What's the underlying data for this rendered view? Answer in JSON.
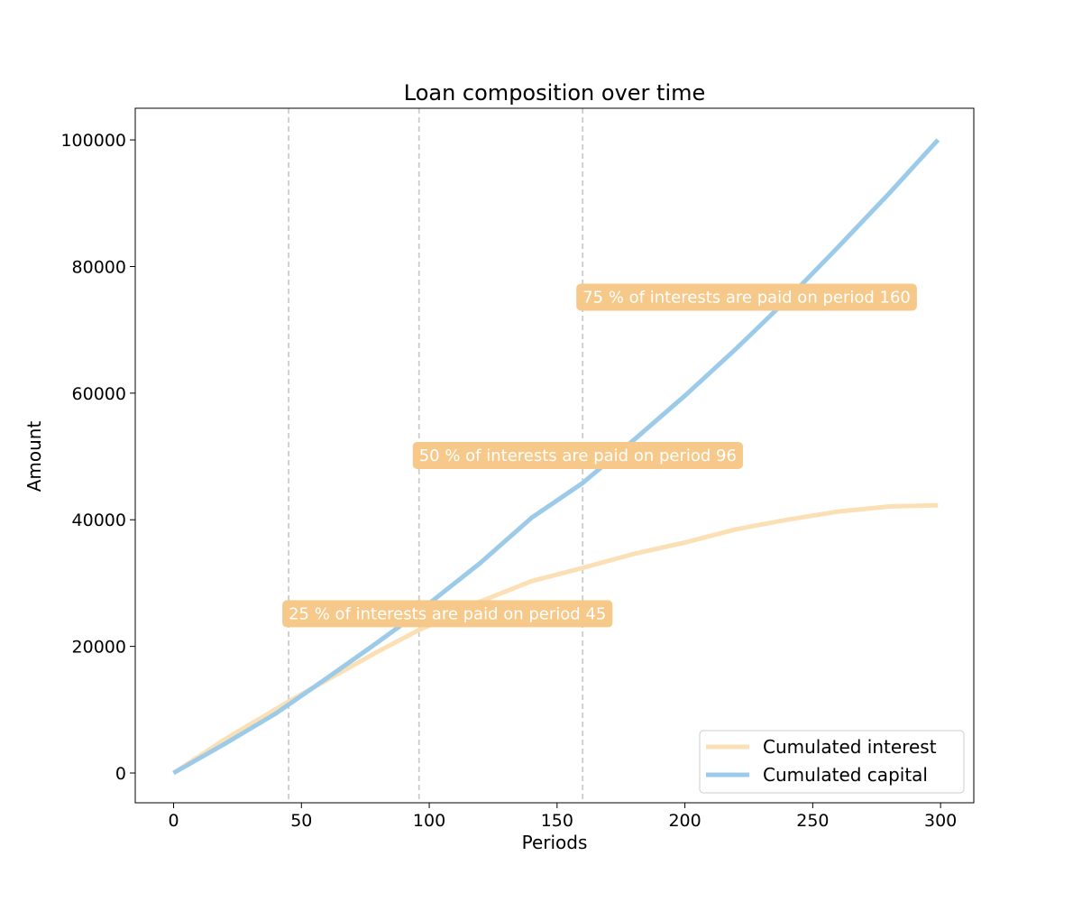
{
  "chart_data": {
    "type": "line",
    "title": "Loan composition over time",
    "xlabel": "Periods",
    "ylabel": "Amount",
    "xlim": [
      -15,
      313
    ],
    "ylim": [
      -4700,
      105000
    ],
    "xticks": [
      0,
      50,
      100,
      150,
      200,
      250,
      300
    ],
    "yticks": [
      0,
      20000,
      40000,
      60000,
      80000,
      100000
    ],
    "grid": false,
    "legend_position": "lower-right",
    "series": [
      {
        "name": "Cumulated interest",
        "color": "#fbe0b6",
        "x": [
          0,
          20,
          40,
          45,
          60,
          80,
          96,
          100,
          120,
          140,
          160,
          180,
          200,
          220,
          240,
          260,
          280,
          299
        ],
        "y": [
          0,
          5300,
          10100,
          11300,
          14700,
          19200,
          22600,
          23300,
          27100,
          30300,
          32400,
          34600,
          36400,
          38500,
          40000,
          41300,
          42100,
          42300
        ]
      },
      {
        "name": "Cumulated capital",
        "color": "#9ccbea",
        "x": [
          0,
          20,
          40,
          45,
          60,
          80,
          96,
          100,
          120,
          140,
          160,
          180,
          200,
          220,
          240,
          260,
          280,
          299
        ],
        "y": [
          0,
          4600,
          9400,
          10800,
          15000,
          20700,
          25400,
          26800,
          33200,
          40300,
          45800,
          52600,
          59600,
          67000,
          74800,
          83100,
          91600,
          100000
        ]
      }
    ],
    "vlines": [
      {
        "x": 45,
        "color": "#cccccc",
        "style": "dashed"
      },
      {
        "x": 96,
        "color": "#cccccc",
        "style": "dashed"
      },
      {
        "x": 160,
        "color": "#cccccc",
        "style": "dashed"
      }
    ],
    "annotations": [
      {
        "text": "25 % of interests are paid on period 45",
        "x": 45,
        "y": 25300,
        "bg_color": "#f6c98a"
      },
      {
        "text": "50 % of interests are paid on period 96",
        "x": 96,
        "y": 50300,
        "bg_color": "#f6c98a"
      },
      {
        "text": "75 % of interests are paid on period 160",
        "x": 160,
        "y": 75300,
        "bg_color": "#f6c98a"
      }
    ]
  }
}
